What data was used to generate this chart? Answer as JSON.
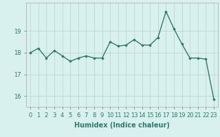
{
  "x": [
    0,
    1,
    2,
    3,
    4,
    5,
    6,
    7,
    8,
    9,
    10,
    11,
    12,
    13,
    14,
    15,
    16,
    17,
    18,
    19,
    20,
    21,
    22,
    23
  ],
  "y": [
    18.0,
    18.2,
    17.75,
    18.1,
    17.85,
    17.6,
    17.75,
    17.85,
    17.75,
    17.75,
    18.5,
    18.3,
    18.35,
    18.6,
    18.35,
    18.35,
    18.7,
    19.9,
    19.1,
    18.4,
    17.75,
    17.75,
    17.7,
    15.85
  ],
  "line_color": "#2d7a6e",
  "marker": "D",
  "marker_size": 1.8,
  "line_width": 1.0,
  "bg_color": "#d8f0ee",
  "grid_color": "#b8d8d4",
  "xlabel": "Humidex (Indice chaleur)",
  "xlabel_fontsize": 7,
  "tick_fontsize": 6,
  "ylim": [
    15.5,
    20.3
  ],
  "yticks": [
    16,
    17,
    18,
    19
  ]
}
